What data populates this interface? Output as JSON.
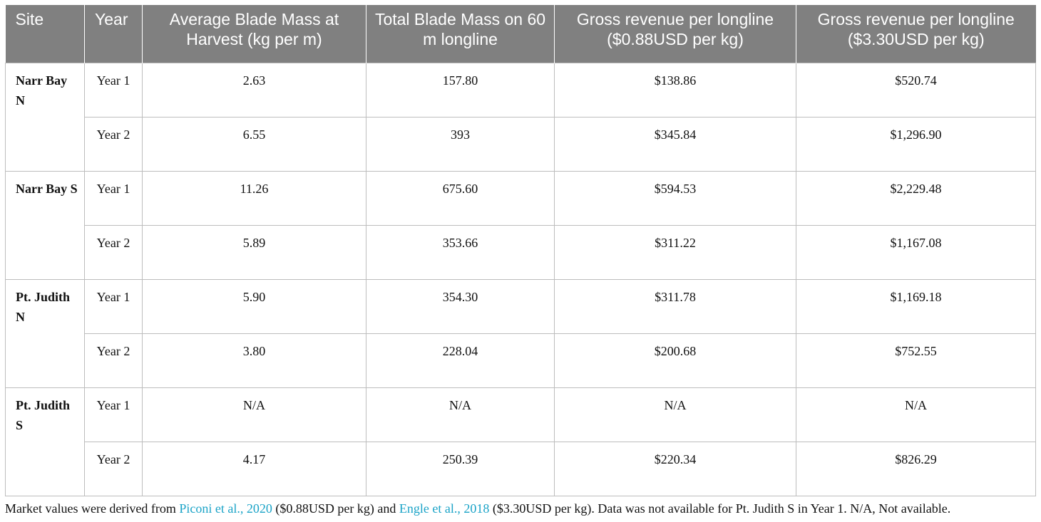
{
  "headers": {
    "site": "Site",
    "year": "Year",
    "avg_mass": "Average Blade Mass at Harvest (kg per m)",
    "total_mass": "Total Blade Mass on 60 m longline",
    "rev_low": "Gross revenue per longline ($0.88USD per kg)",
    "rev_high": "Gross revenue per longline ($3.30USD per kg)"
  },
  "sites": [
    {
      "name": "Narr Bay N",
      "rows": [
        {
          "year": "Year 1",
          "avg": "2.63",
          "total": "157.80",
          "rev_low": "$138.86",
          "rev_high": "$520.74"
        },
        {
          "year": "Year 2",
          "avg": "6.55",
          "total": "393",
          "rev_low": "$345.84",
          "rev_high": "$1,296.90"
        }
      ]
    },
    {
      "name": "Narr Bay S",
      "rows": [
        {
          "year": "Year 1",
          "avg": "11.26",
          "total": "675.60",
          "rev_low": "$594.53",
          "rev_high": "$2,229.48"
        },
        {
          "year": "Year 2",
          "avg": "5.89",
          "total": "353.66",
          "rev_low": "$311.22",
          "rev_high": "$1,167.08"
        }
      ]
    },
    {
      "name": "Pt. Judith N",
      "rows": [
        {
          "year": "Year 1",
          "avg": "5.90",
          "total": "354.30",
          "rev_low": "$311.78",
          "rev_high": "$1,169.18"
        },
        {
          "year": "Year 2",
          "avg": "3.80",
          "total": "228.04",
          "rev_low": "$200.68",
          "rev_high": "$752.55"
        }
      ]
    },
    {
      "name": "Pt. Judith S",
      "rows": [
        {
          "year": "Year 1",
          "avg": "N/A",
          "total": "N/A",
          "rev_low": "N/A",
          "rev_high": "N/A"
        },
        {
          "year": "Year 2",
          "avg": "4.17",
          "total": "250.39",
          "rev_low": "$220.34",
          "rev_high": "$826.29"
        }
      ]
    }
  ],
  "footnote": {
    "text1": "Market values were derived from ",
    "link1": "Piconi et al., 2020",
    "text2": " ($0.88USD per kg) and ",
    "link2": "Engle et al., 2018",
    "text3": " ($3.30USD per kg). Data was not available for Pt. Judith S in Year 1. N/A, Not available."
  }
}
